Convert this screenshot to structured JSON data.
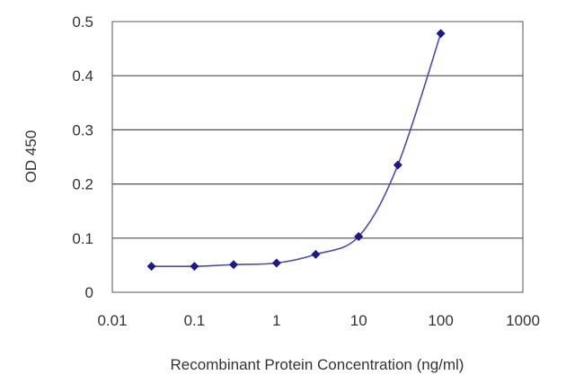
{
  "chart_data": {
    "type": "line",
    "title": "",
    "xlabel": "Recombinant Protein Concentration (ng/ml)",
    "ylabel": "OD 450",
    "x_scale": "log",
    "xlim": [
      0.01,
      1000
    ],
    "ylim": [
      0,
      0.5
    ],
    "x_ticks": [
      "0.01",
      "0.1",
      "1",
      "10",
      "100",
      "1000"
    ],
    "y_ticks": [
      "0",
      "0.1",
      "0.2",
      "0.3",
      "0.4",
      "0.5"
    ],
    "grid": "horizontal",
    "legend": "none",
    "line_color": "#4a4ab8",
    "marker_color": "#1a1a8c",
    "grid_color": "#4d4d4d",
    "series": [
      {
        "x": [
          0.03,
          0.1,
          0.3,
          1,
          3,
          10,
          30,
          100
        ],
        "y": [
          0.048,
          0.048,
          0.051,
          0.054,
          0.07,
          0.103,
          0.235,
          0.478
        ]
      }
    ]
  }
}
